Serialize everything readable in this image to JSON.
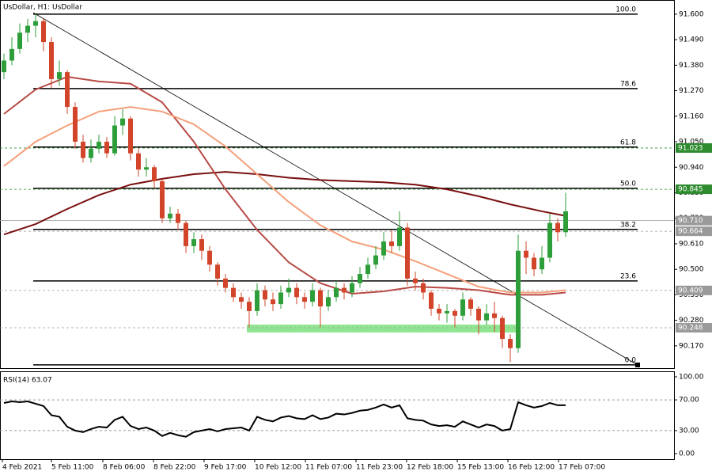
{
  "chart_data": [
    {
      "type": "candlestick",
      "title": "UsDollar, H1:  UsDollar",
      "xlim": [
        -0.5,
        84.7
      ],
      "ylim": [
        90.074,
        91.661
      ],
      "xticks": [
        {
          "value": -0.2,
          "label": "4 Feb 2021"
        },
        {
          "value": 6,
          "label": "5 Feb 11:00"
        },
        {
          "value": 12.5,
          "label": "8 Feb 06:00"
        },
        {
          "value": 18.9,
          "label": "8 Feb 22:00"
        },
        {
          "value": 25.3,
          "label": "9 Feb 17:00"
        },
        {
          "value": 31.7,
          "label": "10 Feb 12:00"
        },
        {
          "value": 38.1,
          "label": "11 Feb 07:00"
        },
        {
          "value": 44.5,
          "label": "11 Feb 23:00"
        },
        {
          "value": 50.9,
          "label": "12 Feb 18:00"
        },
        {
          "value": 57.3,
          "label": "15 Feb 13:00"
        },
        {
          "value": 63.7,
          "label": "16 Feb 12:00"
        },
        {
          "value": 70.1,
          "label": "17 Feb 07:00"
        }
      ],
      "yticks": [
        {
          "value": 91.6,
          "label": "91.600"
        },
        {
          "value": 91.49,
          "label": "91.490"
        },
        {
          "value": 91.38,
          "label": "91.380"
        },
        {
          "value": 91.27,
          "label": "91.270"
        },
        {
          "value": 91.16,
          "label": "91.160"
        },
        {
          "value": 91.05,
          "label": "91.050"
        },
        {
          "value": 90.94,
          "label": "90.940"
        },
        {
          "value": 90.83,
          "label": "90.830"
        },
        {
          "value": 90.72,
          "label": "90.720"
        },
        {
          "value": 90.61,
          "label": "90.610"
        },
        {
          "value": 90.5,
          "label": "90.500"
        },
        {
          "value": 90.39,
          "label": "90.390"
        },
        {
          "value": 90.28,
          "label": "90.280"
        },
        {
          "value": 90.17,
          "label": "90.170"
        }
      ],
      "up_color": "#2e9e3a",
      "down_color": "#d2452a",
      "ohlc": [
        [
          91.35,
          91.43,
          91.32,
          91.4
        ],
        [
          91.4,
          91.5,
          91.38,
          91.45
        ],
        [
          91.45,
          91.56,
          91.43,
          91.52
        ],
        [
          91.52,
          91.58,
          91.48,
          91.55
        ],
        [
          91.55,
          91.6,
          91.5,
          91.57
        ],
        [
          91.57,
          91.58,
          91.44,
          91.48
        ],
        [
          91.48,
          91.5,
          91.28,
          91.32
        ],
        [
          91.32,
          91.4,
          91.29,
          91.35
        ],
        [
          91.35,
          91.36,
          91.17,
          91.2
        ],
        [
          91.2,
          91.22,
          91.02,
          91.05
        ],
        [
          91.05,
          91.08,
          90.96,
          90.98
        ],
        [
          90.98,
          91.06,
          90.96,
          91.02
        ],
        [
          91.02,
          91.08,
          91.0,
          91.05
        ],
        [
          91.05,
          91.07,
          90.98,
          91.0
        ],
        [
          91.0,
          91.16,
          90.99,
          91.12
        ],
        [
          91.12,
          91.19,
          91.08,
          91.15
        ],
        [
          91.15,
          91.16,
          90.97,
          91.0
        ],
        [
          91.0,
          91.02,
          90.9,
          90.93
        ],
        [
          90.93,
          90.98,
          90.9,
          90.94
        ],
        [
          90.94,
          90.95,
          90.85,
          90.88
        ],
        [
          90.88,
          90.89,
          90.7,
          90.72
        ],
        [
          90.72,
          90.77,
          90.7,
          90.74
        ],
        [
          90.74,
          90.76,
          90.67,
          90.7
        ],
        [
          90.7,
          90.71,
          90.57,
          90.6
        ],
        [
          90.6,
          90.66,
          90.57,
          90.63
        ],
        [
          90.63,
          90.65,
          90.54,
          90.58
        ],
        [
          90.58,
          90.6,
          90.49,
          90.52
        ],
        [
          90.52,
          90.53,
          90.43,
          90.46
        ],
        [
          90.46,
          90.48,
          90.4,
          90.42
        ],
        [
          90.42,
          90.44,
          90.36,
          90.38
        ],
        [
          90.38,
          90.4,
          90.33,
          90.36
        ],
        [
          90.36,
          90.38,
          90.25,
          90.32
        ],
        [
          90.32,
          90.44,
          90.3,
          90.41
        ],
        [
          90.41,
          90.43,
          90.34,
          90.37
        ],
        [
          90.37,
          90.4,
          90.32,
          90.35
        ],
        [
          90.35,
          90.43,
          90.33,
          90.4
        ],
        [
          90.4,
          90.46,
          90.38,
          90.42
        ],
        [
          90.42,
          90.44,
          90.35,
          90.38
        ],
        [
          90.38,
          90.4,
          90.33,
          90.36
        ],
        [
          90.36,
          90.44,
          90.34,
          90.41
        ],
        [
          90.41,
          90.42,
          90.25,
          90.34
        ],
        [
          90.34,
          90.41,
          90.32,
          90.38
        ],
        [
          90.38,
          90.45,
          90.36,
          90.42
        ],
        [
          90.42,
          90.44,
          90.37,
          90.4
        ],
        [
          90.4,
          90.47,
          90.38,
          90.44
        ],
        [
          90.44,
          90.51,
          90.42,
          90.48
        ],
        [
          90.48,
          90.55,
          90.46,
          90.52
        ],
        [
          90.52,
          90.6,
          90.5,
          90.56
        ],
        [
          90.56,
          90.66,
          90.54,
          90.62
        ],
        [
          90.62,
          90.67,
          90.57,
          90.6
        ],
        [
          90.6,
          90.75,
          90.58,
          90.68
        ],
        [
          90.68,
          90.7,
          90.43,
          90.46
        ],
        [
          90.46,
          90.49,
          90.41,
          90.44
        ],
        [
          90.44,
          90.46,
          90.37,
          90.4
        ],
        [
          90.4,
          90.41,
          90.3,
          90.33
        ],
        [
          90.33,
          90.35,
          90.28,
          90.31
        ],
        [
          90.31,
          90.35,
          90.27,
          90.32
        ],
        [
          90.32,
          90.33,
          90.25,
          90.3
        ],
        [
          90.3,
          90.4,
          90.28,
          90.37
        ],
        [
          90.37,
          90.38,
          90.3,
          90.33
        ],
        [
          90.33,
          90.34,
          90.22,
          90.28
        ],
        [
          90.28,
          90.35,
          90.26,
          90.31
        ],
        [
          90.31,
          90.36,
          90.23,
          90.29
        ],
        [
          90.29,
          90.3,
          90.16,
          90.2
        ],
        [
          90.2,
          90.22,
          90.1,
          90.16
        ],
        [
          90.16,
          90.65,
          90.14,
          90.58
        ],
        [
          90.58,
          90.62,
          90.48,
          90.55
        ],
        [
          90.55,
          90.57,
          90.47,
          90.5
        ],
        [
          90.5,
          90.6,
          90.48,
          90.55
        ],
        [
          90.55,
          90.74,
          90.53,
          90.7
        ],
        [
          90.7,
          90.72,
          90.62,
          90.66
        ],
        [
          90.66,
          90.83,
          90.64,
          90.75
        ]
      ],
      "series": [
        {
          "color": "#7a0f0f",
          "x": [
            0,
            4,
            8,
            12,
            16,
            20,
            24,
            28,
            32,
            36,
            40,
            44,
            48,
            52,
            56,
            60,
            64,
            68,
            71
          ],
          "values": [
            90.65,
            90.695,
            90.76,
            90.82,
            90.865,
            90.89,
            90.91,
            90.92,
            90.91,
            90.895,
            90.885,
            90.88,
            90.875,
            90.865,
            90.845,
            90.815,
            90.78,
            90.75,
            90.73
          ]
        },
        {
          "color": "#b84a45",
          "x": [
            0,
            4,
            8,
            12,
            16,
            20,
            24,
            28,
            32,
            36,
            40,
            44,
            48,
            52,
            56,
            60,
            64,
            68,
            71
          ],
          "values": [
            91.17,
            91.275,
            91.33,
            91.31,
            91.3,
            91.22,
            91.05,
            90.845,
            90.67,
            90.53,
            90.44,
            90.395,
            90.405,
            90.425,
            90.42,
            90.41,
            90.39,
            90.39,
            90.4
          ]
        },
        {
          "color": "#f4a07a",
          "x": [
            0,
            4,
            8,
            12,
            16,
            20,
            24,
            28,
            32,
            36,
            40,
            44,
            48,
            52,
            56,
            60,
            64,
            68,
            71
          ],
          "values": [
            90.945,
            91.05,
            91.12,
            91.18,
            91.2,
            91.18,
            91.125,
            91.03,
            90.91,
            90.79,
            90.69,
            90.62,
            90.585,
            90.535,
            90.48,
            90.425,
            90.4,
            90.4,
            90.41
          ]
        }
      ],
      "fib_levels": [
        {
          "label": "100.0",
          "value": 91.6
        },
        {
          "label": "78.6",
          "value": 91.279
        },
        {
          "label": "61.8",
          "value": 91.027
        },
        {
          "label": "50.0",
          "value": 90.849
        },
        {
          "label": "38.2",
          "value": 90.672
        },
        {
          "label": "23.6",
          "value": 90.45
        },
        {
          "label": "0.0",
          "value": 90.088
        }
      ],
      "price_levels": [
        {
          "value": 91.023,
          "label": "91.023",
          "color": "#2e8b2e"
        },
        {
          "value": 90.845,
          "label": "90.845",
          "color": "#2e8b2e"
        },
        {
          "value": 90.71,
          "label": "90.710",
          "color": "#9a9a9a"
        },
        {
          "value": 90.664,
          "label": "90.664",
          "color": "#9a9a9a"
        },
        {
          "value": 90.409,
          "label": "90.409",
          "color": "#9a9a9a"
        },
        {
          "value": 90.248,
          "label": "90.248",
          "color": "#9a9a9a"
        }
      ]
    },
    {
      "type": "line",
      "title": "RSI(14) 63.07",
      "ylim": [
        -7.2,
        106.2
      ],
      "yticks": [
        {
          "value": 100,
          "label": "100.00"
        },
        {
          "value": 70,
          "label": "70.00"
        },
        {
          "value": 30,
          "label": "30.00"
        },
        {
          "value": 0,
          "label": "0.00"
        }
      ],
      "levels": [
        70,
        30
      ],
      "color": "#000000",
      "values": [
        66,
        68,
        67,
        68,
        65,
        62,
        50,
        48,
        35,
        30,
        28,
        32,
        35,
        34,
        44,
        48,
        36,
        32,
        34,
        30,
        23,
        27,
        24,
        22,
        28,
        30,
        32,
        29,
        32,
        33,
        34,
        30,
        48,
        44,
        42,
        47,
        49,
        46,
        45,
        50,
        45,
        47,
        52,
        51,
        53,
        56,
        57,
        60,
        64,
        60,
        63,
        46,
        44,
        43,
        38,
        36,
        37,
        35,
        42,
        38,
        34,
        38,
        36,
        30,
        32,
        67,
        63,
        60,
        62,
        66,
        63,
        63.07
      ]
    }
  ]
}
